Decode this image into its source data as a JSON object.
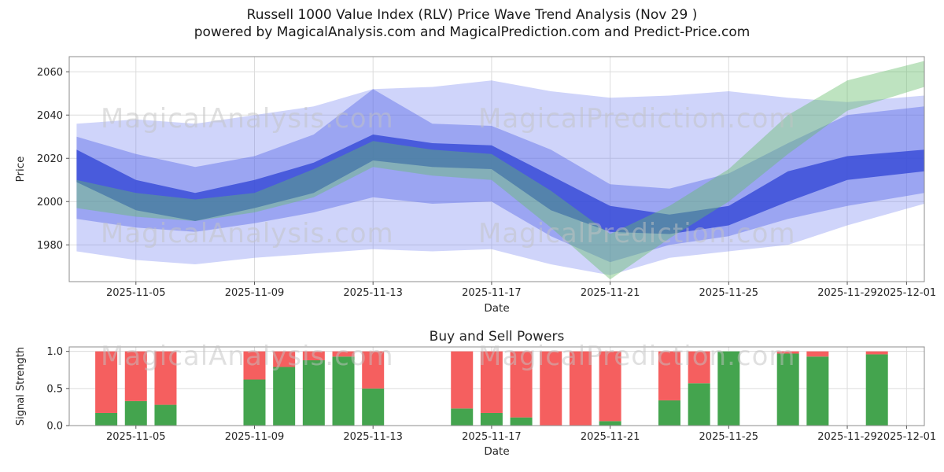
{
  "title": {
    "line1": "Russell 1000 Value Index  (RLV) Price Wave Trend Analysis (Nov 29 )",
    "line2": "powered by MagicalAnalysis.com and MagicalPrediction.com and Predict-Price.com"
  },
  "watermarks": {
    "left": "MagicalAnalysis.com",
    "right": "MagicalPrediction.com"
  },
  "colors": {
    "grid": "#dcdcdc",
    "axis_border": "#8c8c8c",
    "tick": "#555555",
    "buy_green": "#44a44e",
    "sell_red": "#f55f5f"
  },
  "time": {
    "origin": "2025-11-03",
    "t_min": -0.25,
    "t_max": 28.6,
    "x_ticks": [
      {
        "date": "2025-11-05",
        "label": "2025-11-05"
      },
      {
        "date": "2025-11-09",
        "label": "2025-11-09"
      },
      {
        "date": "2025-11-13",
        "label": "2025-11-13"
      },
      {
        "date": "2025-11-17",
        "label": "2025-11-17"
      },
      {
        "date": "2025-11-21",
        "label": "2025-11-21"
      },
      {
        "date": "2025-11-25",
        "label": "2025-11-25"
      },
      {
        "date": "2025-11-29",
        "label": "2025-11-29"
      },
      {
        "date": "2025-12-01",
        "label": "2025-12-01"
      }
    ]
  },
  "chart_data": [
    {
      "type": "area",
      "name": "price-wave-trend",
      "title": "",
      "xlabel": "Date",
      "ylabel": "Price",
      "ylim": [
        1963,
        2067
      ],
      "y_ticks": [
        1980,
        2000,
        2020,
        2040,
        2060
      ],
      "grid": true,
      "legend": "none",
      "t_points": [
        0,
        2,
        4,
        6,
        8,
        10,
        12,
        14,
        16,
        18,
        20,
        22,
        24,
        26,
        28.6
      ],
      "bands": [
        {
          "name": "outer-forecast-band",
          "color": "#6a79ef",
          "alpha": 0.32,
          "upper": [
            2036,
            2038,
            2036,
            2040,
            2044,
            2052,
            2053,
            2056,
            2051,
            2048,
            2049,
            2051,
            2048,
            2046,
            2049
          ],
          "lower": [
            1977,
            1973,
            1971,
            1974,
            1976,
            1978,
            1977,
            1978,
            1971,
            1966,
            1974,
            1977,
            1980,
            1989,
            1999
          ]
        },
        {
          "name": "mid-forecast-band",
          "color": "#5465e8",
          "alpha": 0.42,
          "upper": [
            2030,
            2022,
            2016,
            2021,
            2031,
            2052,
            2036,
            2035,
            2024,
            2008,
            2006,
            2013,
            2027,
            2040,
            2044
          ],
          "lower": [
            1992,
            1988,
            1986,
            1990,
            1995,
            2002,
            1999,
            2000,
            1984,
            1972,
            1980,
            1984,
            1992,
            1998,
            2004
          ]
        },
        {
          "name": "inner-trend-band",
          "color": "#3247d6",
          "alpha": 0.78,
          "upper": [
            2024,
            2010,
            2004,
            2010,
            2018,
            2031,
            2027,
            2026,
            2012,
            1998,
            1994,
            1998,
            2014,
            2021,
            2024
          ],
          "lower": [
            2009,
            1996,
            1991,
            1997,
            2004,
            2019,
            2016,
            2015,
            1996,
            1986,
            1985,
            1989,
            2000,
            2010,
            2014
          ]
        },
        {
          "name": "green-trend-band",
          "color": "#63bd6a",
          "alpha": 0.42,
          "upper": [
            2010,
            2004,
            2001,
            2004,
            2015,
            2028,
            2024,
            2022,
            2005,
            1985,
            1998,
            2015,
            2040,
            2056,
            2065
          ],
          "lower": [
            1997,
            1993,
            1991,
            1995,
            2002,
            2016,
            2012,
            2010,
            1988,
            1964,
            1983,
            2000,
            2022,
            2042,
            2053
          ]
        }
      ]
    },
    {
      "type": "bar",
      "name": "buy-sell-powers",
      "title": "Buy and Sell Powers",
      "xlabel": "Date",
      "ylabel": "Signal Strength",
      "ylim": [
        0,
        1.06
      ],
      "y_ticks": [
        0,
        0.5,
        1
      ],
      "y_tick_labels": [
        "0.0",
        "0.5",
        "1.0"
      ],
      "grid": true,
      "series": [
        {
          "name": "buy",
          "color": "#44a44e"
        },
        {
          "name": "sell",
          "color": "#f55f5f"
        }
      ],
      "bars": [
        {
          "date": "2025-11-04",
          "buy": 0.17,
          "sell": 0.83
        },
        {
          "date": "2025-11-05",
          "buy": 0.33,
          "sell": 0.67
        },
        {
          "date": "2025-11-06",
          "buy": 0.28,
          "sell": 0.72
        },
        {
          "date": "2025-11-09",
          "buy": 0.62,
          "sell": 0.38
        },
        {
          "date": "2025-11-10",
          "buy": 0.79,
          "sell": 0.21
        },
        {
          "date": "2025-11-11",
          "buy": 0.88,
          "sell": 0.12
        },
        {
          "date": "2025-11-12",
          "buy": 0.93,
          "sell": 0.07
        },
        {
          "date": "2025-11-13",
          "buy": 0.5,
          "sell": 0.5
        },
        {
          "date": "2025-11-16",
          "buy": 0.23,
          "sell": 0.77
        },
        {
          "date": "2025-11-17",
          "buy": 0.17,
          "sell": 0.83
        },
        {
          "date": "2025-11-18",
          "buy": 0.11,
          "sell": 0.89
        },
        {
          "date": "2025-11-19",
          "buy": 0.0,
          "sell": 1.0
        },
        {
          "date": "2025-11-20",
          "buy": 0.0,
          "sell": 1.0
        },
        {
          "date": "2025-11-21",
          "buy": 0.06,
          "sell": 0.94
        },
        {
          "date": "2025-11-23",
          "buy": 0.34,
          "sell": 0.66
        },
        {
          "date": "2025-11-24",
          "buy": 0.57,
          "sell": 0.43
        },
        {
          "date": "2025-11-25",
          "buy": 1.0,
          "sell": 0.0
        },
        {
          "date": "2025-11-27",
          "buy": 0.97,
          "sell": 0.03
        },
        {
          "date": "2025-11-28",
          "buy": 0.93,
          "sell": 0.07
        },
        {
          "date": "2025-11-30",
          "buy": 0.96,
          "sell": 0.04
        }
      ]
    }
  ]
}
